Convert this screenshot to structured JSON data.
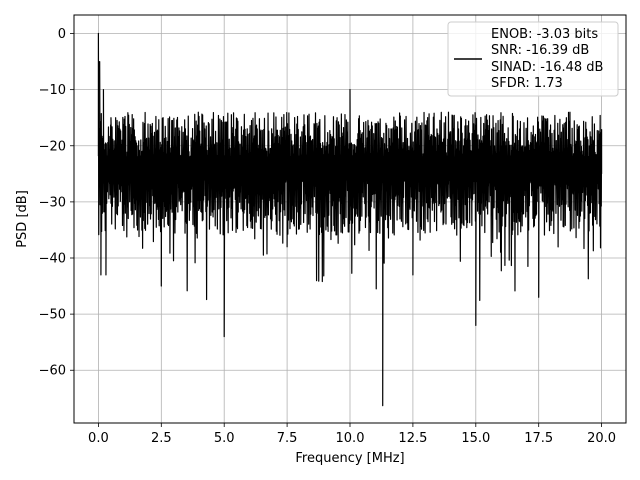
{
  "chart_data": {
    "type": "line",
    "xlabel": "Frequency [MHz]",
    "ylabel": "PSD [dB]",
    "xlim": [
      -0.97,
      20.97
    ],
    "ylim": [
      -69.4,
      3.3
    ],
    "x_ticks": [
      0.0,
      2.5,
      5.0,
      7.5,
      10.0,
      12.5,
      15.0,
      17.5,
      20.0
    ],
    "x_tick_labels": [
      "0.0",
      "2.5",
      "5.0",
      "7.5",
      "10.0",
      "12.5",
      "15.0",
      "17.5",
      "20.0"
    ],
    "y_ticks": [
      0,
      -10,
      -20,
      -30,
      -40,
      -50,
      -60
    ],
    "y_tick_labels": [
      "0",
      "−10",
      "−20",
      "−30",
      "−40",
      "−50",
      "−60"
    ],
    "grid": true,
    "legend_position": "top-right",
    "series": [
      {
        "name": "ENOB: -3.03 bits\nSNR: -16.39 dB\nSINAD: -16.48 dB\nSFDR: 1.73",
        "legend_lines": [
          "ENOB: -3.03 bits",
          "SNR: -16.39 dB",
          "SINAD: -16.48 dB",
          "SFDR: 1.73"
        ],
        "color": "#000000",
        "x_range": [
          0.0,
          20.0
        ],
        "noise_floor_upper_db": -18,
        "noise_floor_lower_db": -30,
        "x": [
          0.0,
          0.05,
          0.1,
          0.2,
          0.3,
          0.5,
          1.0,
          2.5,
          5.0,
          7.5,
          10.0,
          11.3,
          12.5,
          15.0,
          17.5,
          20.0
        ],
        "y": [
          0.0,
          -5.0,
          -43.0,
          -10.0,
          -43.0,
          -15.0,
          -25.0,
          -45.0,
          -54.0,
          -38.0,
          -10.0,
          -66.3,
          -43.0,
          -52.0,
          -47.0,
          -25.0
        ]
      }
    ]
  }
}
